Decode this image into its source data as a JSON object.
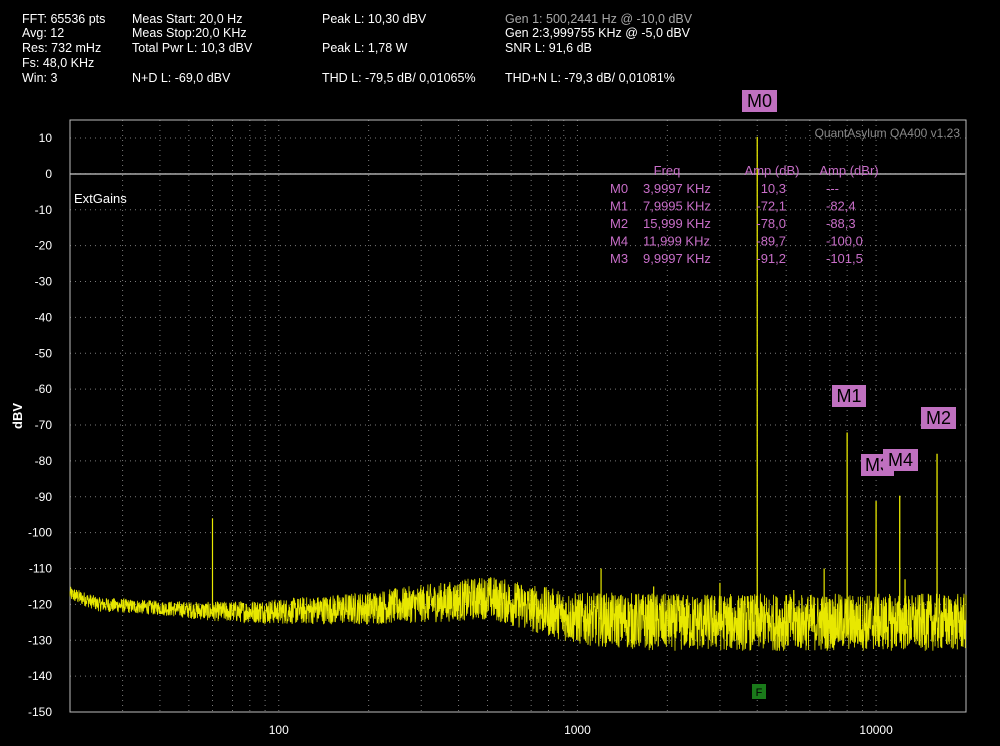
{
  "stats": {
    "fft": "FFT: 65536 pts",
    "avg": "Avg: 12",
    "res": "Res: 732 mHz",
    "fs": "Fs: 48,0 KHz",
    "win": "Win: 3",
    "meas_start": "Meas Start: 20,0 Hz",
    "meas_stop": "Meas Stop:20,0 KHz",
    "total_pwr": "Total Pwr L: 10,3 dBV",
    "nd": "N+D L: -69,0 dBV",
    "peak_dbv": "Peak L: 10,30 dBV",
    "peak_w": "Peak L: 1,78 W",
    "thd": "THD L: -79,5 dB/ 0,01065%",
    "gen1": "Gen 1: 500,2441 Hz @ -10,0  dBV",
    "gen2": "Gen 2:3,999755 KHz @ -5,0  dBV",
    "snr": "SNR L: 91,6 dB",
    "thdn": "THD+N L: -79,3 dB/ 0,01081%"
  },
  "watermark": "QuantAsylum QA400 v1.23",
  "ext_gains": "ExtGains",
  "colors": {
    "trace": "#e8e800",
    "marker": "#c070c0",
    "marker_text": "#c86ec8",
    "grid": "#7a7a7a",
    "f_marker": "#1a7a1a"
  },
  "marker_table": {
    "headers": [
      "Freq",
      "Amp (dB)",
      "Amp (dBr)"
    ],
    "rows": [
      {
        "id": "M0",
        "freq": "3,9997 KHz",
        "amp": "10,3",
        "ampr": "---"
      },
      {
        "id": "M1",
        "freq": "7,9995 KHz",
        "amp": "-72,1",
        "ampr": "-82,4"
      },
      {
        "id": "M2",
        "freq": "15,999 KHz",
        "amp": "-78,0",
        "ampr": "-88,3"
      },
      {
        "id": "M4",
        "freq": "11,999 KHz",
        "amp": "-89,7",
        "ampr": "-100,0"
      },
      {
        "id": "M3",
        "freq": "9,9997 KHz",
        "amp": "-91,2",
        "ampr": "-101,5"
      }
    ]
  },
  "f_label": "F",
  "chart_data": {
    "type": "line",
    "xscale": "log",
    "xlim": [
      20,
      20000
    ],
    "ylim": [
      -150,
      10
    ],
    "ylabel": "dBV",
    "xticks": [
      100,
      1000,
      10000
    ],
    "xtick_labels": [
      "100",
      "1000",
      "10000"
    ],
    "yticks": [
      10,
      0,
      -10,
      -20,
      -30,
      -40,
      -50,
      -60,
      -70,
      -80,
      -90,
      -100,
      -110,
      -120,
      -130,
      -140,
      -150
    ],
    "ytick_labels": [
      "10",
      "0",
      "-10",
      "-20",
      "-30",
      "-40",
      "-50",
      "-60",
      "-70",
      "-80",
      "-90",
      "-100",
      "-110",
      "-120",
      "-130",
      "-140",
      "-150"
    ],
    "grid": true,
    "noise_floor": [
      [
        20,
        -117
      ],
      [
        25,
        -120
      ],
      [
        40,
        -121
      ],
      [
        60,
        -122
      ],
      [
        100,
        -122
      ],
      [
        200,
        -121
      ],
      [
        400,
        -119
      ],
      [
        500,
        -118
      ],
      [
        700,
        -121
      ],
      [
        1000,
        -124
      ],
      [
        2000,
        -125
      ],
      [
        4000,
        -125
      ],
      [
        8000,
        -125
      ],
      [
        20000,
        -125
      ]
    ],
    "spurs": [
      {
        "freq": 60,
        "amp": -96
      },
      {
        "freq": 350,
        "amp": -116
      },
      {
        "freq": 1200,
        "amp": -110
      },
      {
        "freq": 1800,
        "amp": -115
      },
      {
        "freq": 3000,
        "amp": -114
      },
      {
        "freq": 5300,
        "amp": -116
      },
      {
        "freq": 6700,
        "amp": -110
      },
      {
        "freq": 12500,
        "amp": -113
      }
    ],
    "peaks": [
      {
        "id": "M0",
        "freq": 3999.7,
        "amp": 10.3
      },
      {
        "id": "M1",
        "freq": 7999.5,
        "amp": -72.1
      },
      {
        "id": "M2",
        "freq": 15999,
        "amp": -78.0
      },
      {
        "id": "M4",
        "freq": 11999,
        "amp": -89.7
      },
      {
        "id": "M3",
        "freq": 9999.7,
        "amp": -91.2
      }
    ]
  }
}
